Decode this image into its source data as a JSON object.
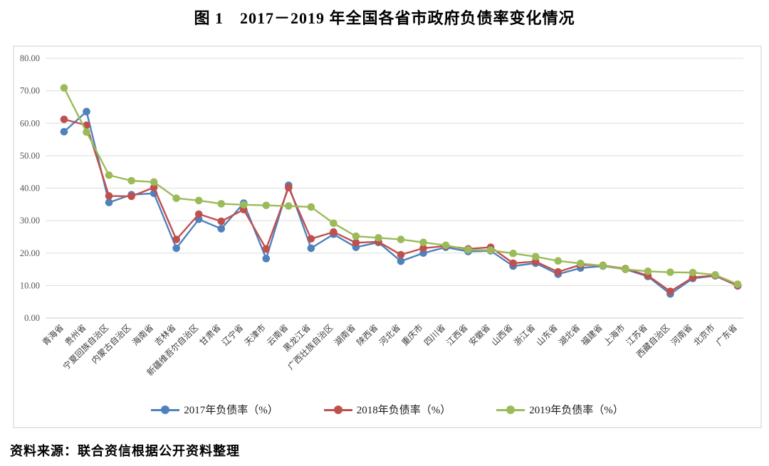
{
  "page": {
    "title": "图 1　2017－2019 年全国各省市政府负债率变化情况",
    "source_note": "资料来源：联合资信根据公开资料整理"
  },
  "chart_data": {
    "type": "line",
    "title": "图 1　2017－2019 年全国各省市政府负债率变化情况",
    "xlabel": "",
    "ylabel": "",
    "ylim": [
      0,
      80
    ],
    "ytick_step": 10,
    "ytick_labels": [
      "0.00",
      "10.00",
      "20.00",
      "30.00",
      "40.00",
      "50.00",
      "60.00",
      "70.00",
      "80.00"
    ],
    "grid": "horizontal",
    "legend_position": "bottom",
    "marker": "circle",
    "categories": [
      "青海省",
      "贵州省",
      "宁夏回族自治区",
      "内蒙古自治区",
      "海南省",
      "吉林省",
      "新疆维吾尔自治区",
      "甘肃省",
      "辽宁省",
      "天津市",
      "云南省",
      "黑龙江省",
      "广西壮族自治区",
      "湖南省",
      "陕西省",
      "河北省",
      "重庆市",
      "四川省",
      "江西省",
      "安徽省",
      "山西省",
      "浙江省",
      "山东省",
      "湖北省",
      "福建省",
      "上海市",
      "江苏省",
      "西藏自治区",
      "河南省",
      "北京市",
      "广东省"
    ],
    "series": [
      {
        "name": "2017年负债率（%）",
        "color": "#4F81BD",
        "values": [
          57.4,
          63.6,
          35.6,
          38.0,
          38.4,
          21.5,
          30.4,
          27.5,
          35.4,
          18.3,
          40.9,
          21.5,
          25.8,
          21.8,
          23.3,
          17.5,
          20.0,
          21.8,
          20.5,
          20.7,
          16.0,
          16.9,
          13.5,
          15.4,
          16.0,
          15.0,
          12.8,
          7.4,
          12.2,
          13.0,
          9.9
        ]
      },
      {
        "name": "2018年负债率（%）",
        "color": "#C0504D",
        "values": [
          61.2,
          59.4,
          37.6,
          37.5,
          40.2,
          24.2,
          32.0,
          29.8,
          33.4,
          21.3,
          40.2,
          24.4,
          26.5,
          23.2,
          23.5,
          19.5,
          21.5,
          22.2,
          21.3,
          21.8,
          16.9,
          17.4,
          14.2,
          16.4,
          16.2,
          15.2,
          13.1,
          8.2,
          12.5,
          13.1,
          10.0
        ]
      },
      {
        "name": "2019年负债率（%）",
        "color": "#9BBB59",
        "values": [
          70.9,
          57.3,
          44.0,
          42.3,
          41.9,
          36.9,
          36.2,
          35.2,
          34.9,
          34.7,
          34.5,
          34.2,
          29.2,
          25.2,
          24.7,
          24.2,
          23.3,
          22.4,
          21.0,
          20.9,
          19.9,
          18.9,
          17.6,
          16.8,
          16.1,
          15.0,
          14.4,
          14.1,
          14.0,
          13.3,
          10.4
        ]
      }
    ]
  }
}
